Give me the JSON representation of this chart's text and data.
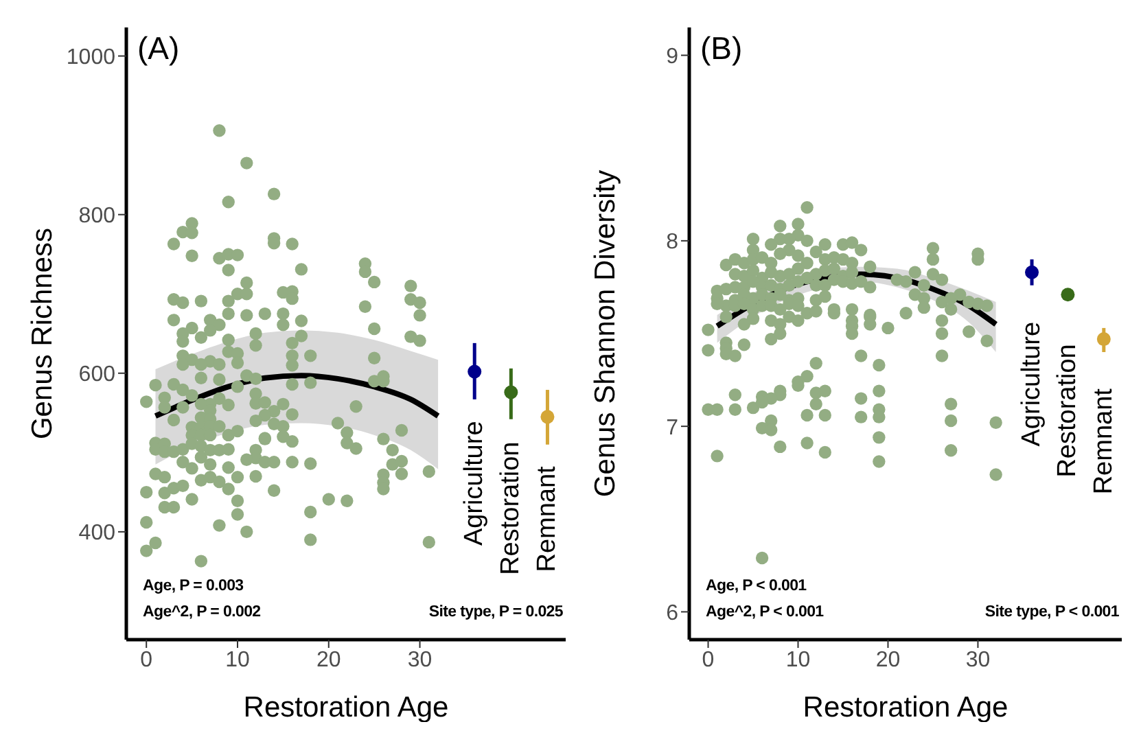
{
  "chart_data": [
    {
      "type": "scatter",
      "title": "(A)",
      "xlabel": "Restoration Age",
      "ylabel": "Genus Richness",
      "xlim": [
        -2.2,
        46
      ],
      "xticks": [
        0,
        10,
        20,
        30
      ],
      "ylim": [
        264,
        1036
      ],
      "yticks": [
        400,
        600,
        800,
        1000
      ],
      "annotations": [
        "Age, P = 0.003",
        "Age^2, P = 0.002",
        "Site type, P = 0.025"
      ],
      "series": [
        {
          "color": "#93ad83",
          "x": [
            8,
            11,
            14,
            9,
            5,
            4,
            5,
            3,
            14,
            14,
            16,
            5,
            8,
            9,
            10,
            9,
            17,
            24,
            24,
            25,
            29,
            11,
            10,
            11,
            15,
            16,
            16,
            3,
            4,
            6,
            9,
            29,
            30,
            24,
            30,
            9,
            11,
            13,
            15,
            3,
            7,
            17,
            5,
            8,
            4,
            7,
            12,
            15,
            25,
            6,
            4,
            9,
            17,
            29,
            30,
            16,
            12,
            9,
            4,
            10,
            16,
            18,
            25,
            5,
            7,
            4,
            6,
            8,
            10,
            16,
            6,
            8,
            11,
            12,
            3,
            4,
            1,
            10,
            16,
            18,
            25,
            26,
            26,
            0,
            2,
            2,
            5,
            8,
            12,
            12,
            7,
            9,
            13,
            15,
            3,
            4,
            6,
            6,
            7,
            7,
            14,
            13,
            12,
            16,
            23,
            5,
            6,
            7,
            8,
            9,
            10,
            14,
            15,
            21,
            5,
            6,
            7,
            13,
            15,
            22,
            28,
            1,
            1,
            2,
            2,
            3,
            4,
            5,
            6,
            6,
            7,
            8,
            9,
            12,
            12,
            13,
            16,
            22,
            23,
            26,
            27,
            4,
            5,
            7,
            9,
            11,
            13,
            14,
            16,
            18,
            27,
            28,
            1,
            2,
            6,
            7,
            8,
            10,
            12,
            26,
            26,
            26,
            28,
            31,
            0,
            2,
            3,
            4,
            9,
            14,
            5,
            10,
            20,
            22,
            2,
            3,
            10,
            18,
            0,
            8,
            11,
            18,
            31,
            1,
            0,
            6
          ],
          "values": [
            906,
            865,
            826,
            816,
            789,
            778,
            777,
            763,
            770,
            764,
            763,
            748,
            745,
            750,
            749,
            730,
            731,
            738,
            728,
            715,
            710,
            714,
            700,
            700,
            702,
            703,
            694,
            693,
            689,
            691,
            691,
            693,
            689,
            684,
            673,
            675,
            673,
            675,
            675,
            667,
            667,
            666,
            657,
            661,
            650,
            654,
            650,
            661,
            656,
            645,
            640,
            642,
            647,
            646,
            641,
            638,
            635,
            627,
            622,
            625,
            622,
            622,
            619,
            617,
            615,
            611,
            611,
            611,
            613,
            610,
            594,
            592,
            597,
            593,
            586,
            579,
            585,
            583,
            586,
            588,
            590,
            596,
            590,
            564,
            569,
            557,
            572,
            568,
            574,
            562,
            561,
            560,
            563,
            561,
            541,
            557,
            561,
            544,
            553,
            542,
            552,
            547,
            540,
            548,
            558,
            532,
            532,
            533,
            533,
            522,
            527,
            536,
            533,
            537,
            522,
            522,
            522,
            518,
            520,
            525,
            528,
            512,
            504,
            511,
            501,
            501,
            504,
            511,
            508,
            494,
            503,
            503,
            504,
            503,
            493,
            517,
            514,
            512,
            505,
            517,
            503,
            488,
            480,
            485,
            481,
            491,
            488,
            488,
            488,
            486,
            485,
            489,
            473,
            469,
            465,
            469,
            463,
            469,
            470,
            472,
            462,
            454,
            473,
            476,
            450,
            449,
            455,
            458,
            454,
            452,
            441,
            439,
            441,
            439,
            431,
            431,
            422,
            425,
            412,
            408,
            400,
            390,
            387,
            386,
            376,
            363
          ]
        },
        {
          "type": "line",
          "color": "#000000",
          "x": [
            1,
            5,
            9,
            13,
            17,
            21,
            25,
            29,
            32
          ],
          "values": [
            546,
            566,
            583,
            594,
            597,
            593,
            583,
            567,
            546
          ],
          "lower": [
            485,
            508,
            525,
            535,
            537,
            533,
            522,
            503,
            479
          ],
          "upper": [
            605,
            624,
            640,
            651,
            654,
            651,
            642,
            628,
            617
          ]
        },
        {
          "name": "Agriculture",
          "color": "#00008b",
          "x": [
            36
          ],
          "values": [
            602
          ],
          "errors": [
            [
              567,
              638
            ]
          ]
        },
        {
          "name": "Restoration",
          "color": "#386b19",
          "x": [
            40
          ],
          "values": [
            576
          ],
          "errors": [
            [
              542,
              606
            ]
          ]
        },
        {
          "name": "Remnant",
          "color": "#d4a637",
          "x": [
            44
          ],
          "values": [
            545
          ],
          "errors": [
            [
              510,
              579
            ]
          ]
        }
      ]
    },
    {
      "type": "scatter",
      "title": "(B)",
      "xlabel": "Restoration Age",
      "ylabel": "Genus Shannon Diversity",
      "xlim": [
        -2.1,
        46
      ],
      "xticks": [
        0,
        10,
        20,
        30
      ],
      "ylim": [
        5.85,
        9.15
      ],
      "yticks": [
        6,
        7,
        8,
        9
      ],
      "annotations": [
        "Age, P < 0.001",
        "Age^2, P < 0.001",
        "Site type, P < 0.001"
      ],
      "series": [
        {
          "color": "#93ad83",
          "x": [
            11,
            8,
            10,
            5,
            8,
            10,
            11,
            9,
            12,
            13,
            15,
            16,
            7,
            5,
            9,
            2,
            3,
            4,
            5,
            6,
            7,
            8,
            10,
            11,
            13,
            14,
            15,
            16,
            17,
            18,
            25,
            25,
            30,
            30,
            3,
            4,
            5,
            6,
            7,
            8,
            9,
            10,
            12,
            13,
            14,
            15,
            16,
            23,
            25,
            1,
            2,
            3,
            4,
            5,
            6,
            7,
            8,
            9,
            10,
            11,
            12,
            13,
            14,
            15,
            16,
            17,
            18,
            21,
            22,
            24,
            26,
            1,
            2,
            3,
            4,
            5,
            6,
            7,
            8,
            9,
            10,
            12,
            13,
            23,
            24,
            26,
            27,
            28,
            29,
            30,
            31,
            1,
            3,
            4,
            5,
            6,
            7,
            8,
            9,
            10,
            11,
            12,
            14,
            14,
            16,
            18,
            22,
            24,
            27,
            0,
            2,
            4,
            5,
            7,
            8,
            9,
            10,
            16,
            18,
            26,
            2,
            2,
            2,
            3,
            4,
            7,
            8,
            16,
            16,
            18,
            20,
            26,
            29,
            0,
            17,
            19,
            26,
            12,
            11,
            10,
            10,
            13,
            12,
            19,
            3,
            8,
            8,
            6,
            7,
            5,
            6,
            12,
            13,
            17,
            17,
            19,
            19,
            27,
            0,
            1,
            3,
            11,
            7,
            6,
            7,
            27,
            19,
            8,
            11,
            13,
            1,
            19,
            27,
            6,
            31,
            32,
            32
          ],
          "values": [
            8.18,
            8.08,
            8.09,
            8.01,
            8.01,
            8.03,
            8.0,
            7.95,
            7.94,
            7.98,
            7.98,
            7.99,
            7.98,
            7.95,
            8.01,
            7.87,
            7.9,
            7.88,
            7.9,
            7.91,
            7.88,
            7.93,
            7.92,
            7.88,
            7.9,
            7.91,
            7.9,
            7.88,
            7.95,
            7.86,
            7.96,
            7.9,
            7.93,
            7.9,
            7.82,
            7.81,
            7.84,
            7.8,
            7.83,
            7.81,
            7.82,
            7.85,
            7.82,
            7.84,
            7.85,
            7.81,
            7.83,
            7.83,
            7.82,
            7.73,
            7.74,
            7.75,
            7.75,
            7.78,
            7.75,
            7.76,
            7.74,
            7.76,
            7.78,
            7.8,
            7.76,
            7.76,
            7.79,
            7.78,
            7.77,
            7.78,
            7.75,
            7.79,
            7.78,
            7.76,
            7.79,
            7.69,
            7.65,
            7.68,
            7.71,
            7.69,
            7.71,
            7.69,
            7.71,
            7.68,
            7.69,
            7.68,
            7.7,
            7.71,
            7.69,
            7.67,
            7.69,
            7.71,
            7.67,
            7.66,
            7.65,
            7.66,
            7.65,
            7.66,
            7.63,
            7.65,
            7.65,
            7.63,
            7.66,
            7.65,
            7.61,
            7.62,
            7.63,
            7.61,
            7.63,
            7.6,
            7.61,
            7.64,
            7.63,
            7.52,
            7.59,
            7.55,
            7.58,
            7.57,
            7.55,
            7.59,
            7.57,
            7.57,
            7.59,
            7.57,
            7.45,
            7.42,
            7.39,
            7.38,
            7.44,
            7.47,
            7.5,
            7.54,
            7.5,
            7.55,
            7.53,
            7.5,
            7.51,
            7.41,
            7.38,
            7.33,
            7.38,
            7.34,
            7.27,
            7.24,
            7.22,
            7.19,
            7.18,
            7.19,
            7.17,
            7.19,
            7.17,
            7.16,
            7.15,
            7.1,
            7.13,
            7.12,
            7.06,
            7.15,
            7.05,
            7.09,
            7.05,
            7.12,
            7.09,
            7.09,
            7.09,
            7.06,
            7.03,
            6.99,
            6.98,
            7.03,
            6.94,
            6.89,
            6.91,
            6.86,
            6.84,
            6.81,
            6.87,
            6.29,
            7.46,
            7.02,
            6.74
          ]
        },
        {
          "type": "line",
          "color": "#000000",
          "x": [
            1,
            5,
            9,
            13,
            17,
            21,
            25,
            29,
            32
          ],
          "values": [
            7.54,
            7.66,
            7.75,
            7.8,
            7.82,
            7.8,
            7.74,
            7.65,
            7.55
          ],
          "lower": [
            7.45,
            7.59,
            7.69,
            7.75,
            7.78,
            7.75,
            7.68,
            7.56,
            7.4
          ],
          "upper": [
            7.6,
            7.72,
            7.8,
            7.85,
            7.86,
            7.85,
            7.8,
            7.73,
            7.67
          ]
        },
        {
          "name": "Agriculture",
          "color": "#00008b",
          "x": [
            36
          ],
          "values": [
            7.83
          ],
          "errors": [
            [
              7.76,
              7.9
            ]
          ]
        },
        {
          "name": "Restoration",
          "color": "#386b19",
          "x": [
            40
          ],
          "values": [
            7.71
          ],
          "errors": [
            [
              7.69,
              7.73
            ]
          ]
        },
        {
          "name": "Remnant",
          "color": "#d4a637",
          "x": [
            44
          ],
          "values": [
            7.47
          ],
          "errors": [
            [
              7.4,
              7.53
            ]
          ]
        }
      ]
    }
  ]
}
